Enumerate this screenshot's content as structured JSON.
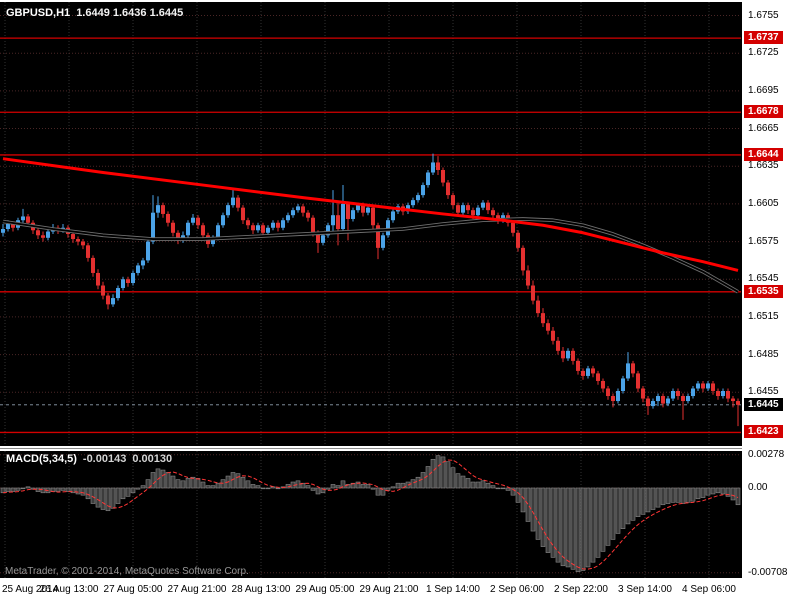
{
  "header": {
    "symbol_period": "GBPUSD,H1",
    "quotes": "1.6449 1.6436 1.6445"
  },
  "footer": {
    "copyright": "MetaTrader, © 2001-2014, MetaQuotes Software Corp."
  },
  "colors": {
    "chart_bg": "#000000",
    "frame_bg": "#ffffff",
    "bull": "#4ba3e8",
    "bear": "#e43030",
    "trend_line": "#ff0000",
    "slow_ma": "#000000",
    "slow_ma_halo": "#6e6e6e",
    "level_line": "#d40000",
    "grid_h": "#4a2626",
    "grid_v": "#323232",
    "bid_line": "#8fa0b0",
    "histogram_fill": "#3c3c3c",
    "histogram_border": "#8a8a8a",
    "signal_line": "#ff3535",
    "badge_red": "#d40000",
    "badge_black": "#000000"
  },
  "chart_data": {
    "type": "candlestick_with_macd",
    "symbol": "GBPUSD",
    "timeframe": "H1",
    "price_range": {
      "max": 1.6761,
      "min": 1.6413
    },
    "grid_prices": [
      1.6755,
      1.6725,
      1.6695,
      1.6665,
      1.6635,
      1.6605,
      1.6575,
      1.6545,
      1.6515,
      1.6485,
      1.6455
    ],
    "levels": [
      1.6737,
      1.6678,
      1.6644,
      1.6535,
      1.6423
    ],
    "bid": 1.6445,
    "price_axis_labels": [
      {
        "text": "1.6755",
        "badge": null
      },
      {
        "text": "1.6737",
        "badge": "red"
      },
      {
        "text": "1.6725",
        "badge": null
      },
      {
        "text": "1.6695",
        "badge": null
      },
      {
        "text": "1.6678",
        "badge": "red"
      },
      {
        "text": "1.6665",
        "badge": null
      },
      {
        "text": "1.6644",
        "badge": "red"
      },
      {
        "text": "1.6635",
        "badge": null
      },
      {
        "text": "1.6605",
        "badge": null
      },
      {
        "text": "1.6575",
        "badge": null
      },
      {
        "text": "1.6545",
        "badge": null
      },
      {
        "text": "1.6535",
        "badge": "red"
      },
      {
        "text": "1.6515",
        "badge": null
      },
      {
        "text": "1.6485",
        "badge": null
      },
      {
        "text": "1.6455",
        "badge": null
      },
      {
        "text": "1.6445",
        "badge": "black"
      },
      {
        "text": "1.6423",
        "badge": "red"
      }
    ],
    "time_labels": [
      "25 Aug 2014",
      "26 Aug 13:00",
      "27 Aug 05:00",
      "27 Aug 21:00",
      "28 Aug 13:00",
      "29 Aug 05:00",
      "29 Aug 21:00",
      "1 Sep 14:00",
      "2 Sep 06:00",
      "2 Sep 22:00",
      "3 Sep 14:00",
      "4 Sep 06:00"
    ],
    "ma_trend_red": [
      [
        0,
        1.6641
      ],
      [
        20,
        1.663
      ],
      [
        40,
        1.662
      ],
      [
        60,
        1.661
      ],
      [
        75,
        1.6603
      ],
      [
        88,
        1.6597
      ],
      [
        100,
        1.6592
      ],
      [
        108,
        1.6588
      ],
      [
        116,
        1.6582
      ],
      [
        124,
        1.6574
      ],
      [
        132,
        1.6566
      ],
      [
        140,
        1.6559
      ],
      [
        147,
        1.6552
      ]
    ],
    "ma_slow_black": [
      [
        0,
        1.6591
      ],
      [
        10,
        1.6585
      ],
      [
        20,
        1.658
      ],
      [
        30,
        1.6577
      ],
      [
        40,
        1.6577
      ],
      [
        50,
        1.6579
      ],
      [
        60,
        1.6581
      ],
      [
        70,
        1.6583
      ],
      [
        80,
        1.6585
      ],
      [
        88,
        1.6589
      ],
      [
        96,
        1.6592
      ],
      [
        104,
        1.6593
      ],
      [
        110,
        1.6592
      ],
      [
        116,
        1.6588
      ],
      [
        122,
        1.6581
      ],
      [
        128,
        1.6572
      ],
      [
        134,
        1.6562
      ],
      [
        140,
        1.6551
      ],
      [
        147,
        1.6535
      ]
    ],
    "candles": [
      [
        1.6582,
        1.6589,
        1.6579,
        1.6585
      ],
      [
        1.6585,
        1.6592,
        1.6583,
        1.6589
      ],
      [
        1.6589,
        1.6591,
        1.6583,
        1.6586
      ],
      [
        1.6586,
        1.6594,
        1.6584,
        1.6592
      ],
      [
        1.6592,
        1.6601,
        1.659,
        1.6595
      ],
      [
        1.6595,
        1.6597,
        1.6587,
        1.659
      ],
      [
        1.659,
        1.6592,
        1.6581,
        1.6584
      ],
      [
        1.6584,
        1.6586,
        1.6577,
        1.658
      ],
      [
        1.658,
        1.6583,
        1.6575,
        1.6578
      ],
      [
        1.6578,
        1.6585,
        1.6576,
        1.6583
      ],
      [
        1.6583,
        1.6589,
        1.6581,
        1.6586
      ],
      [
        1.6586,
        1.6588,
        1.6581,
        1.6584
      ],
      [
        1.6584,
        1.6589,
        1.6582,
        1.6586
      ],
      [
        1.6586,
        1.6588,
        1.6578,
        1.6581
      ],
      [
        1.6581,
        1.6583,
        1.6574,
        1.6577
      ],
      [
        1.6577,
        1.6579,
        1.6572,
        1.6575
      ],
      [
        1.6575,
        1.6577,
        1.6569,
        1.6572
      ],
      [
        1.6572,
        1.6574,
        1.6559,
        1.6562
      ],
      [
        1.6562,
        1.6564,
        1.6547,
        1.655
      ],
      [
        1.655,
        1.6553,
        1.6537,
        1.654
      ],
      [
        1.654,
        1.6543,
        1.6529,
        1.6532
      ],
      [
        1.6532,
        1.6534,
        1.6521,
        1.6525
      ],
      [
        1.6525,
        1.6533,
        1.6523,
        1.653
      ],
      [
        1.653,
        1.654,
        1.6528,
        1.6538
      ],
      [
        1.6538,
        1.6547,
        1.6536,
        1.6545
      ],
      [
        1.6545,
        1.6547,
        1.6539,
        1.6542
      ],
      [
        1.6542,
        1.6552,
        1.654,
        1.655
      ],
      [
        1.655,
        1.6558,
        1.6548,
        1.6556
      ],
      [
        1.6556,
        1.6562,
        1.6553,
        1.656
      ],
      [
        1.656,
        1.6577,
        1.6558,
        1.6575
      ],
      [
        1.6575,
        1.6612,
        1.6573,
        1.6598
      ],
      [
        1.6598,
        1.6611,
        1.6594,
        1.6604
      ],
      [
        1.6604,
        1.6606,
        1.6594,
        1.6597
      ],
      [
        1.6597,
        1.6599,
        1.6587,
        1.659
      ],
      [
        1.659,
        1.6592,
        1.6579,
        1.6582
      ],
      [
        1.6582,
        1.6584,
        1.6573,
        1.6576
      ],
      [
        1.6576,
        1.6583,
        1.6574,
        1.658
      ],
      [
        1.658,
        1.6592,
        1.6578,
        1.659
      ],
      [
        1.659,
        1.6597,
        1.6588,
        1.6594
      ],
      [
        1.6594,
        1.6596,
        1.6585,
        1.6588
      ],
      [
        1.6588,
        1.659,
        1.6577,
        1.658
      ],
      [
        1.658,
        1.6582,
        1.657,
        1.6573
      ],
      [
        1.6573,
        1.658,
        1.6571,
        1.6578
      ],
      [
        1.6578,
        1.659,
        1.6576,
        1.6588
      ],
      [
        1.6588,
        1.6598,
        1.6586,
        1.6596
      ],
      [
        1.6596,
        1.6606,
        1.6594,
        1.6604
      ],
      [
        1.6604,
        1.6618,
        1.6602,
        1.661
      ],
      [
        1.661,
        1.6612,
        1.6599,
        1.6602
      ],
      [
        1.6602,
        1.6604,
        1.6589,
        1.6592
      ],
      [
        1.6592,
        1.6594,
        1.6585,
        1.6588
      ],
      [
        1.6588,
        1.659,
        1.6581,
        1.6584
      ],
      [
        1.6584,
        1.659,
        1.6582,
        1.6588
      ],
      [
        1.6588,
        1.659,
        1.6579,
        1.6582
      ],
      [
        1.6582,
        1.6588,
        1.658,
        1.6586
      ],
      [
        1.6586,
        1.6592,
        1.6584,
        1.659
      ],
      [
        1.659,
        1.6592,
        1.6583,
        1.6586
      ],
      [
        1.6586,
        1.6594,
        1.6584,
        1.6592
      ],
      [
        1.6592,
        1.6598,
        1.659,
        1.6596
      ],
      [
        1.6596,
        1.6602,
        1.6594,
        1.66
      ],
      [
        1.66,
        1.6605,
        1.6598,
        1.6603
      ],
      [
        1.6603,
        1.6605,
        1.6595,
        1.6598
      ],
      [
        1.6598,
        1.66,
        1.6591,
        1.6594
      ],
      [
        1.6594,
        1.6596,
        1.6579,
        1.6582
      ],
      [
        1.6582,
        1.6584,
        1.6566,
        1.6574
      ],
      [
        1.6574,
        1.6582,
        1.6572,
        1.658
      ],
      [
        1.658,
        1.659,
        1.6578,
        1.6588
      ],
      [
        1.6588,
        1.6616,
        1.6582,
        1.6596
      ],
      [
        1.6596,
        1.6607,
        1.6572,
        1.6585
      ],
      [
        1.6585,
        1.662,
        1.6583,
        1.6605
      ],
      [
        1.6605,
        1.6607,
        1.6576,
        1.6593
      ],
      [
        1.6593,
        1.6602,
        1.6591,
        1.66
      ],
      [
        1.66,
        1.6606,
        1.6598,
        1.6604
      ],
      [
        1.6604,
        1.6606,
        1.6595,
        1.6598
      ],
      [
        1.6598,
        1.6604,
        1.6596,
        1.6602
      ],
      [
        1.6602,
        1.6604,
        1.6585,
        1.6588
      ],
      [
        1.6588,
        1.659,
        1.6561,
        1.657
      ],
      [
        1.657,
        1.6582,
        1.6568,
        1.658
      ],
      [
        1.658,
        1.6594,
        1.6578,
        1.6592
      ],
      [
        1.6592,
        1.6601,
        1.659,
        1.6599
      ],
      [
        1.6599,
        1.6605,
        1.6597,
        1.6603
      ],
      [
        1.6603,
        1.6605,
        1.6596,
        1.6599
      ],
      [
        1.6599,
        1.6606,
        1.6597,
        1.6604
      ],
      [
        1.6604,
        1.661,
        1.6602,
        1.6608
      ],
      [
        1.6608,
        1.6614,
        1.6606,
        1.6612
      ],
      [
        1.6612,
        1.6622,
        1.661,
        1.662
      ],
      [
        1.662,
        1.6632,
        1.6618,
        1.663
      ],
      [
        1.663,
        1.6645,
        1.6628,
        1.6638
      ],
      [
        1.6638,
        1.6643,
        1.6628,
        1.6632
      ],
      [
        1.6632,
        1.6634,
        1.6619,
        1.6622
      ],
      [
        1.6622,
        1.6624,
        1.6609,
        1.6612
      ],
      [
        1.6612,
        1.6614,
        1.6601,
        1.6604
      ],
      [
        1.6604,
        1.6606,
        1.6595,
        1.6598
      ],
      [
        1.6598,
        1.6606,
        1.6596,
        1.6604
      ],
      [
        1.6604,
        1.6606,
        1.6597,
        1.66
      ],
      [
        1.66,
        1.6602,
        1.6593,
        1.6596
      ],
      [
        1.6596,
        1.6604,
        1.6594,
        1.6602
      ],
      [
        1.6602,
        1.6608,
        1.66,
        1.6606
      ],
      [
        1.6606,
        1.6608,
        1.6597,
        1.66
      ],
      [
        1.66,
        1.6602,
        1.6593,
        1.6596
      ],
      [
        1.6596,
        1.6598,
        1.6589,
        1.6592
      ],
      [
        1.6592,
        1.6598,
        1.659,
        1.6596
      ],
      [
        1.6596,
        1.6598,
        1.6587,
        1.659
      ],
      [
        1.659,
        1.6592,
        1.6579,
        1.6582
      ],
      [
        1.6582,
        1.6584,
        1.6567,
        1.657
      ],
      [
        1.657,
        1.6572,
        1.6548,
        1.6552
      ],
      [
        1.6552,
        1.6556,
        1.6537,
        1.654
      ],
      [
        1.654,
        1.6544,
        1.6525,
        1.6528
      ],
      [
        1.6528,
        1.6532,
        1.6515,
        1.6518
      ],
      [
        1.6518,
        1.6522,
        1.6507,
        1.651
      ],
      [
        1.651,
        1.6513,
        1.6501,
        1.6504
      ],
      [
        1.6504,
        1.6507,
        1.6493,
        1.6496
      ],
      [
        1.6496,
        1.6499,
        1.6485,
        1.6488
      ],
      [
        1.6488,
        1.6491,
        1.6479,
        1.6482
      ],
      [
        1.6482,
        1.649,
        1.648,
        1.6488
      ],
      [
        1.6488,
        1.649,
        1.6477,
        1.648
      ],
      [
        1.648,
        1.6482,
        1.6469,
        1.6472
      ],
      [
        1.6472,
        1.6474,
        1.6465,
        1.6468
      ],
      [
        1.6468,
        1.6476,
        1.6466,
        1.6474
      ],
      [
        1.6474,
        1.6476,
        1.6467,
        1.647
      ],
      [
        1.647,
        1.6472,
        1.6461,
        1.6464
      ],
      [
        1.6464,
        1.6466,
        1.6455,
        1.6458
      ],
      [
        1.6458,
        1.646,
        1.6449,
        1.6452
      ],
      [
        1.6452,
        1.6454,
        1.6443,
        1.6448
      ],
      [
        1.6448,
        1.6458,
        1.6446,
        1.6456
      ],
      [
        1.6456,
        1.6468,
        1.6454,
        1.6466
      ],
      [
        1.6466,
        1.6487,
        1.6464,
        1.6478
      ],
      [
        1.6478,
        1.648,
        1.6467,
        1.647
      ],
      [
        1.647,
        1.6472,
        1.6455,
        1.6458
      ],
      [
        1.6458,
        1.646,
        1.6447,
        1.645
      ],
      [
        1.645,
        1.6452,
        1.6437,
        1.6444
      ],
      [
        1.6444,
        1.645,
        1.6442,
        1.6448
      ],
      [
        1.6448,
        1.6454,
        1.6444,
        1.6452
      ],
      [
        1.6452,
        1.6454,
        1.6443,
        1.6446
      ],
      [
        1.6446,
        1.6452,
        1.6444,
        1.645
      ],
      [
        1.645,
        1.6458,
        1.6448,
        1.6456
      ],
      [
        1.6456,
        1.6458,
        1.6449,
        1.6452
      ],
      [
        1.6452,
        1.6454,
        1.6433,
        1.6448
      ],
      [
        1.6448,
        1.6454,
        1.6446,
        1.6452
      ],
      [
        1.6452,
        1.646,
        1.645,
        1.6458
      ],
      [
        1.6458,
        1.6464,
        1.6456,
        1.6462
      ],
      [
        1.6462,
        1.6464,
        1.6455,
        1.6458
      ],
      [
        1.6458,
        1.6464,
        1.6456,
        1.6462
      ],
      [
        1.6462,
        1.6464,
        1.6453,
        1.6456
      ],
      [
        1.6456,
        1.6458,
        1.6449,
        1.6452
      ],
      [
        1.6452,
        1.6458,
        1.645,
        1.6456
      ],
      [
        1.6456,
        1.6458,
        1.6447,
        1.645
      ],
      [
        1.645,
        1.6452,
        1.6443,
        1.6448
      ],
      [
        1.6448,
        1.645,
        1.6428,
        1.6445
      ]
    ],
    "macd": {
      "label": "MACD(5,34,5)",
      "value": "-0.00143",
      "signal_value": "0.00130",
      "axis": [
        {
          "text": "0.00278",
          "value": 0.00278
        },
        {
          "text": "0.00",
          "value": 0
        },
        {
          "text": "-0.00708",
          "value": -0.00708
        }
      ],
      "range": {
        "max": 0.0031,
        "min": -0.0075
      },
      "values": [
        -0.0004,
        -0.0003,
        -0.0003,
        -0.0002,
        0.0,
        0.0001,
        -0.0001,
        -0.0003,
        -0.0004,
        -0.0004,
        -0.0003,
        -0.0003,
        -0.0002,
        -0.0003,
        -0.0004,
        -0.0005,
        -0.0006,
        -0.0009,
        -0.0013,
        -0.0016,
        -0.0018,
        -0.0019,
        -0.0017,
        -0.0013,
        -0.0009,
        -0.0007,
        -0.0004,
        -0.0001,
        0.0002,
        0.0007,
        0.0013,
        0.0016,
        0.0015,
        0.0013,
        0.001,
        0.0007,
        0.0006,
        0.0008,
        0.0009,
        0.0008,
        0.0005,
        0.0002,
        0.0002,
        0.0004,
        0.0007,
        0.001,
        0.0013,
        0.0012,
        0.0009,
        0.0006,
        0.0003,
        0.0002,
        0.0,
        0.0,
        0.0001,
        0.0,
        0.0001,
        0.0003,
        0.0005,
        0.0006,
        0.0004,
        0.0002,
        -0.0002,
        -0.0005,
        -0.0004,
        -0.0001,
        0.0003,
        0.0002,
        0.0006,
        0.0003,
        0.0004,
        0.0005,
        0.0003,
        0.0003,
        -0.0001,
        -0.0006,
        -0.0006,
        -0.0002,
        0.0001,
        0.0004,
        0.0004,
        0.0005,
        0.0007,
        0.0009,
        0.0013,
        0.0018,
        0.0024,
        0.0027,
        0.0026,
        0.0022,
        0.0017,
        0.0012,
        0.001,
        0.0008,
        0.0005,
        0.0005,
        0.0006,
        0.0004,
        0.0002,
        0.0,
        0.0,
        -0.0002,
        -0.0006,
        -0.0012,
        -0.002,
        -0.0028,
        -0.0036,
        -0.0043,
        -0.0049,
        -0.0054,
        -0.0058,
        -0.0062,
        -0.0065,
        -0.0066,
        -0.0068,
        -0.007,
        -0.0069,
        -0.0066,
        -0.0062,
        -0.0058,
        -0.0053,
        -0.0048,
        -0.0043,
        -0.0038,
        -0.0034,
        -0.003,
        -0.0027,
        -0.0024,
        -0.0022,
        -0.002,
        -0.0018,
        -0.0016,
        -0.0014,
        -0.0013,
        -0.0012,
        -0.0012,
        -0.0013,
        -0.0012,
        -0.0011,
        -0.0009,
        -0.0008,
        -0.0006,
        -0.0005,
        -0.0004,
        -0.0005,
        -0.0007,
        -0.001,
        -0.0014
      ]
    }
  }
}
